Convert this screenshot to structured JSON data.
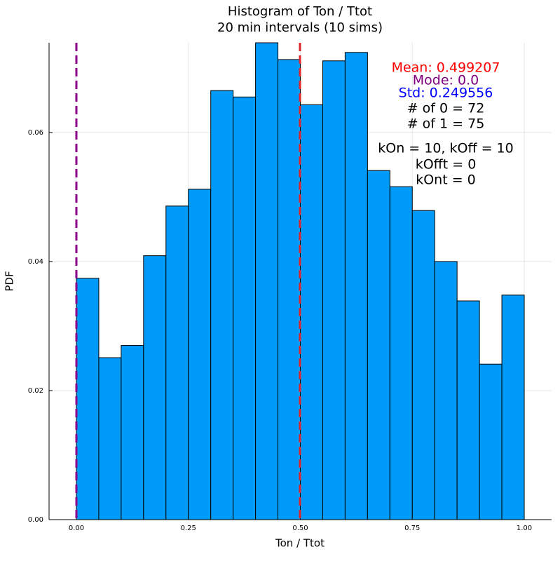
{
  "chart_data": {
    "type": "histogram",
    "title": "Histogram of Ton / Ttot",
    "subtitle": "20 min intervals (10 sims)",
    "x_label": "Ton / Ttot",
    "y_label": "PDF",
    "bins": [
      0,
      0.05,
      0.1,
      0.15,
      0.2,
      0.25,
      0.3,
      0.35,
      0.4,
      0.45,
      0.5,
      0.55,
      0.6,
      0.65,
      0.7,
      0.75,
      0.8,
      0.85,
      0.9,
      0.95,
      1.0
    ],
    "values": [
      0.0374,
      0.0251,
      0.027,
      0.0409,
      0.0486,
      0.0512,
      0.0665,
      0.0655,
      0.0739,
      0.0713,
      0.0643,
      0.0711,
      0.0724,
      0.0541,
      0.0516,
      0.0479,
      0.04,
      0.0339,
      0.0241,
      0.0348
    ],
    "color": "#009af9",
    "xlim": [
      -0.061,
      1.061
    ],
    "ylim": [
      0,
      0.0739
    ],
    "xticks": [
      {
        "value": 0,
        "label": "0.00"
      },
      {
        "value": 0.25,
        "label": "0.25"
      },
      {
        "value": 0.5,
        "label": "0.50"
      },
      {
        "value": 0.75,
        "label": "0.75"
      },
      {
        "value": 1,
        "label": "1.00"
      }
    ],
    "yticks": [
      {
        "value": 0,
        "label": "0.00"
      },
      {
        "value": 0.02,
        "label": "0.02"
      },
      {
        "value": 0.04,
        "label": "0.04"
      },
      {
        "value": 0.06,
        "label": "0.06"
      }
    ],
    "grid": true,
    "vlines": [
      {
        "value": 0.499207,
        "color": "#e0242b"
      },
      {
        "value": 0.0,
        "color": "#8b008b"
      }
    ],
    "annotations": [
      {
        "text": "Mean: 0.499207",
        "color": "#ff0000"
      },
      {
        "text": "Mode: 0.0",
        "color": "#800080"
      },
      {
        "text": "Std: 0.249556",
        "color": "#0000ff"
      },
      {
        "text": "# of 0 = 72",
        "color": "#000000"
      },
      {
        "text": "# of 1 = 75",
        "color": "#000000"
      },
      {
        "text": "kOn = 10, kOff = 10",
        "color": "#000000"
      },
      {
        "text": "kOfft = 0",
        "color": "#000000"
      },
      {
        "text": "kOnt = 0",
        "color": "#000000"
      }
    ]
  }
}
